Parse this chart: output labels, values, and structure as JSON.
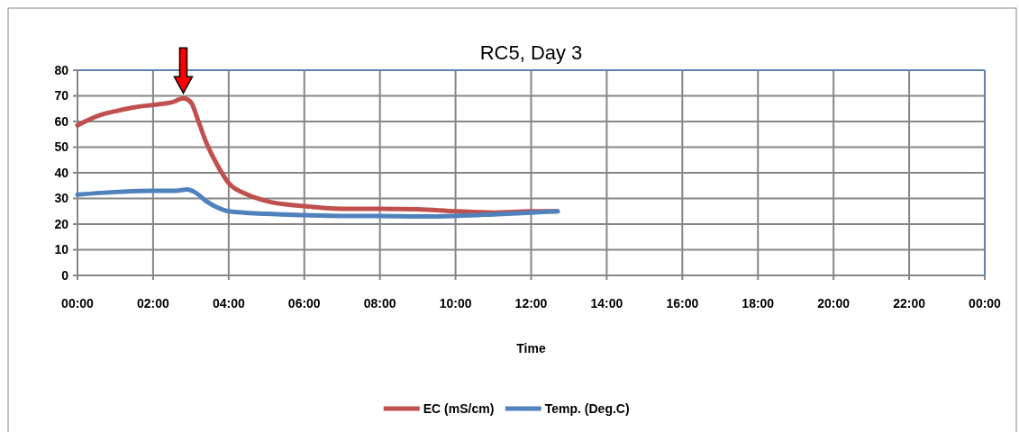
{
  "chart_data": {
    "type": "line",
    "title": "RC5, Day 3",
    "xlabel": "Time",
    "xlim": [
      0,
      24
    ],
    "xticks": [
      {
        "value": 0,
        "label": "00:00"
      },
      {
        "value": 2,
        "label": "02:00"
      },
      {
        "value": 4,
        "label": "04:00"
      },
      {
        "value": 6,
        "label": "06:00"
      },
      {
        "value": 8,
        "label": "08:00"
      },
      {
        "value": 10,
        "label": "10:00"
      },
      {
        "value": 12,
        "label": "12:00"
      },
      {
        "value": 14,
        "label": "14:00"
      },
      {
        "value": 16,
        "label": "16:00"
      },
      {
        "value": 18,
        "label": "18:00"
      },
      {
        "value": 20,
        "label": "20:00"
      },
      {
        "value": 22,
        "label": "22:00"
      },
      {
        "value": 24,
        "label": "00:00"
      }
    ],
    "ylim": [
      0,
      80
    ],
    "yticks": [
      0,
      10,
      20,
      30,
      40,
      50,
      60,
      70,
      80
    ],
    "grid": true,
    "legend": "bottom",
    "marker": "none",
    "line_style": "solid",
    "series": [
      {
        "name": "EC (mS/cm)",
        "color": "#c0504d",
        "x": [
          0,
          0.5,
          1,
          1.5,
          2,
          2.5,
          2.8,
          3.0,
          3.2,
          3.4,
          3.7,
          4,
          4.5,
          5,
          6,
          7,
          8,
          9,
          10,
          11,
          12,
          12.7
        ],
        "values": [
          58.5,
          62,
          64,
          65.5,
          66.5,
          67.5,
          69,
          67.5,
          60,
          52,
          43,
          36,
          31.5,
          29,
          27,
          26,
          26,
          25.8,
          25,
          24.5,
          25,
          25
        ]
      },
      {
        "name": "Temp. (Deg.C)",
        "color": "#4f81bd",
        "x": [
          0,
          1,
          2,
          2.6,
          2.9,
          3.1,
          3.4,
          3.7,
          4,
          5,
          6,
          7,
          8,
          9,
          10,
          11,
          12,
          12.7
        ],
        "values": [
          31.5,
          32.5,
          33,
          33,
          33.5,
          32.5,
          29,
          26.5,
          25,
          24,
          23.5,
          23.2,
          23.2,
          23,
          23.2,
          23.8,
          24.5,
          25
        ]
      }
    ]
  }
}
